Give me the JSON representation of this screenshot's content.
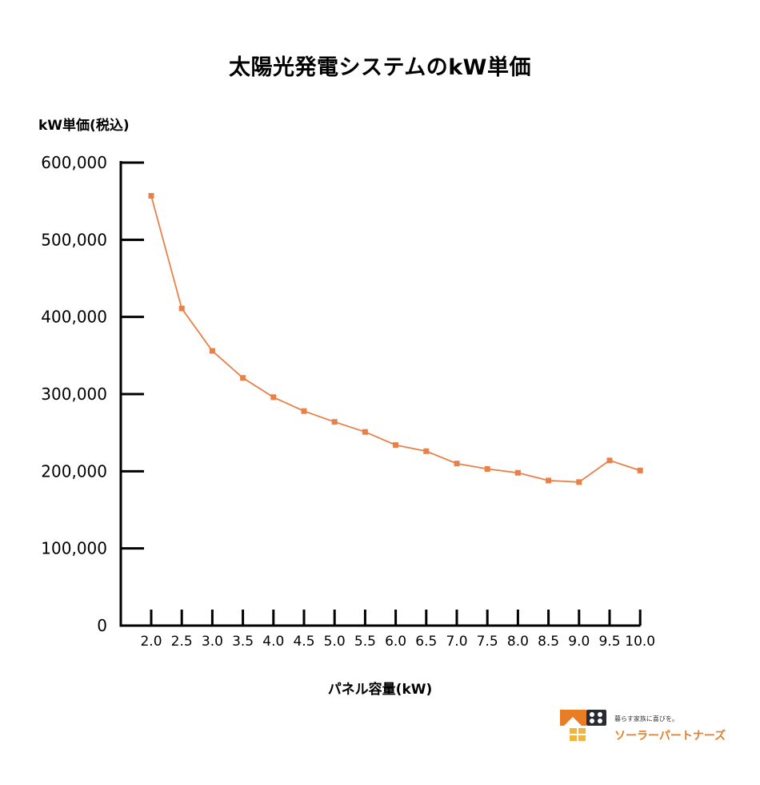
{
  "chart_data": {
    "type": "line",
    "title": "太陽光発電システムのkW単価",
    "ylabel": "kW単価(税込)",
    "xlabel": "パネル容量(kW)",
    "categories": [
      "2.0",
      "2.5",
      "3.0",
      "3.5",
      "4.0",
      "4.5",
      "5.0",
      "5.5",
      "6.0",
      "6.5",
      "7.0",
      "7.5",
      "8.0",
      "8.5",
      "9.0",
      "9.5",
      "10.0"
    ],
    "y_ticks": [
      "0",
      "100,000",
      "200,000",
      "300,000",
      "400,000",
      "500,000",
      "600,000"
    ],
    "ylim": [
      0,
      600000
    ],
    "grid": false,
    "series": [
      {
        "color": "#e8804a",
        "marker": "square",
        "values": [
          557000,
          411000,
          356000,
          321000,
          296000,
          278000,
          264000,
          251000,
          234000,
          226000,
          210000,
          203000,
          198000,
          188000,
          186000,
          214000,
          201000
        ]
      }
    ],
    "colors": {
      "axis": "#000000",
      "line": "#e8804a"
    }
  },
  "logo": {
    "tagline": "暮らす家族に喜びを。",
    "name": "ソーラーパートナーズ",
    "colors": {
      "orange": "#e87d26",
      "dark": "#2a2a35",
      "window": "#f0b53a"
    }
  }
}
